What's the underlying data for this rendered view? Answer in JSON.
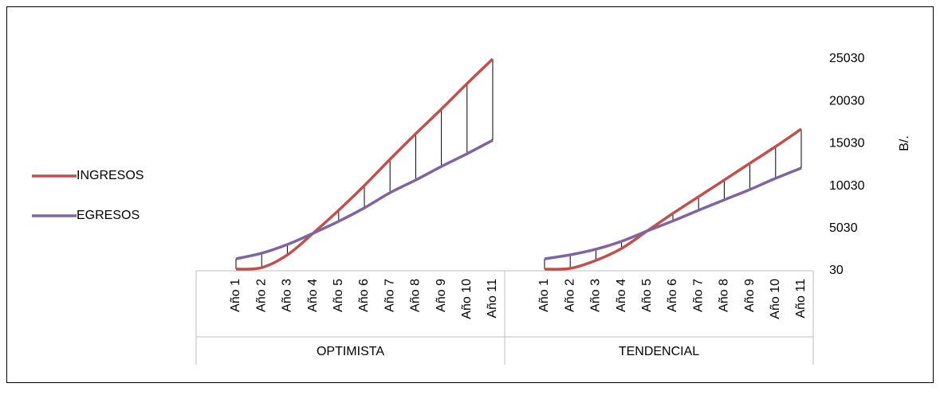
{
  "chart_data": {
    "type": "line",
    "y_axis_label": "B/.",
    "groups": [
      {
        "name": "OPTIMISTA",
        "categories": [
          "Año 1",
          "Año 2",
          "Año 3",
          "Año 4",
          "Año 5",
          "Año 6",
          "Año 7",
          "Año 8",
          "Año 9",
          "Año 10",
          "Año 11"
        ]
      },
      {
        "name": "TENDENCIAL",
        "categories": [
          "Año 1",
          "Año 2",
          "Año 3",
          "Año 4",
          "Año 5",
          "Año 6",
          "Año 7",
          "Año 8",
          "Año 9",
          "Año 10",
          "Año 11"
        ]
      }
    ],
    "series": [
      {
        "name": "INGRESOS",
        "color": "#c0504d",
        "values": [
          [
            220,
            400,
            1900,
            4450,
            7170,
            10090,
            13190,
            16200,
            19110,
            22120,
            25030
          ],
          [
            220,
            310,
            1250,
            2660,
            4730,
            6800,
            8770,
            10740,
            12720,
            14690,
            16760
          ]
        ]
      },
      {
        "name": "EGRESOS",
        "color": "#8064a2",
        "values": [
          [
            1440,
            2100,
            3130,
            4450,
            5860,
            7450,
            9240,
            10740,
            12340,
            13840,
            15440
          ],
          [
            1440,
            1910,
            2570,
            3510,
            4730,
            5910,
            7170,
            8400,
            9620,
            10940,
            12150
          ]
        ]
      }
    ],
    "high_low_lines": true,
    "ylim": [
      30,
      25030
    ],
    "yticks": [
      30,
      5030,
      10030,
      15030,
      20030,
      25030
    ]
  }
}
